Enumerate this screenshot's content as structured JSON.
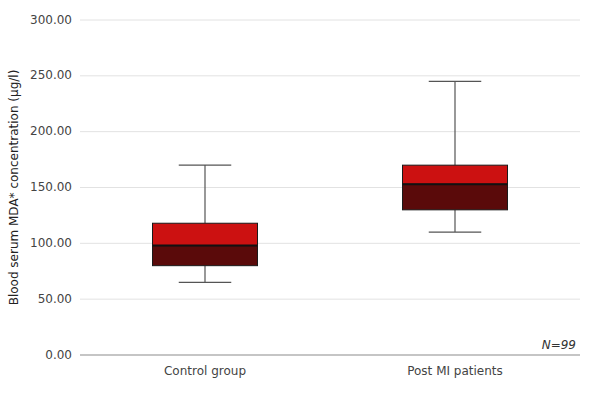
{
  "chart_data": {
    "type": "box",
    "categories": [
      "Control group",
      "Post MI patients"
    ],
    "boxes": [
      {
        "whislo": 65,
        "q1": 80,
        "med": 98,
        "q3": 118,
        "whishi": 170
      },
      {
        "whislo": 110,
        "q1": 130,
        "med": 153,
        "q3": 170,
        "whishi": 245
      }
    ],
    "colors": [
      "#5a0a0a",
      "#cc1111"
    ],
    "ylabel": "Blood serum MDA* concentration (µg/l)",
    "ylim": [
      0,
      300
    ],
    "yticks": [
      {
        "value": 0,
        "label": "0.00"
      },
      {
        "value": 50,
        "label": "50.00"
      },
      {
        "value": 100,
        "label": "100.00"
      },
      {
        "value": 150,
        "label": "150.00"
      },
      {
        "value": 200,
        "label": "200.00"
      },
      {
        "value": 250,
        "label": "250.00"
      },
      {
        "value": 300,
        "label": "300.00"
      }
    ],
    "annotation": "N=99",
    "grid": true
  }
}
